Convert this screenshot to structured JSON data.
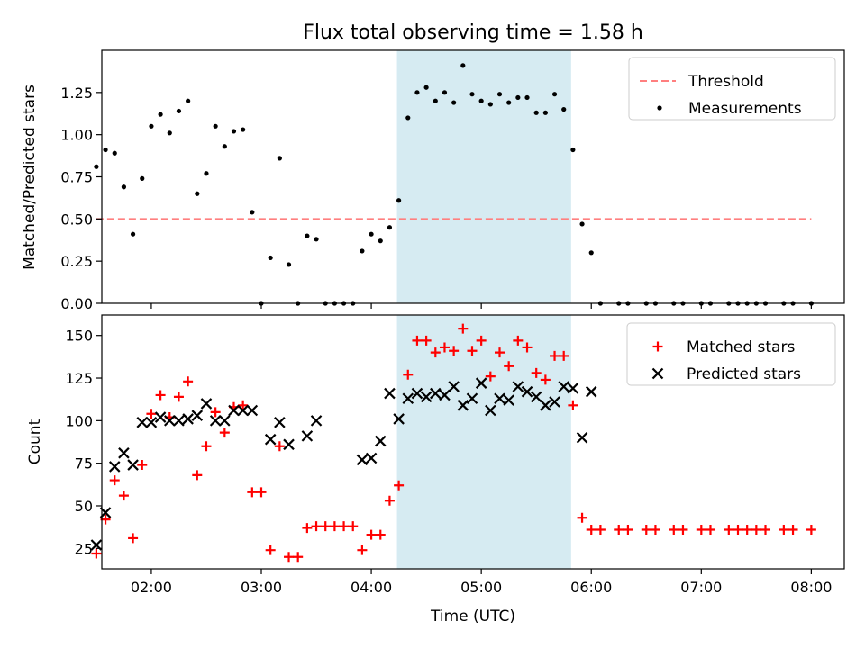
{
  "title": "Flux total observing time = 1.58 h",
  "chart_data": [
    {
      "type": "scatter",
      "title": "Flux total observing time = 1.58 h",
      "xlabel": "",
      "ylabel": "Matched/Predicted stars",
      "xlim": [
        "01:33",
        "08:18"
      ],
      "ylim": [
        0,
        1.5
      ],
      "yticks": [
        "0.00",
        "0.25",
        "0.50",
        "0.75",
        "1.00",
        "1.25"
      ],
      "legend": {
        "placement": "top-right",
        "entries": [
          "Threshold",
          "Measurements"
        ]
      },
      "shaded_interval": {
        "start": "04:14",
        "end": "05:49",
        "color": "#add8e6"
      },
      "threshold": {
        "name": "Threshold",
        "value": 0.5,
        "x_start": "01:30",
        "x_end": "08:00",
        "color": "#ff7f7f",
        "style": "dashed"
      },
      "series": [
        {
          "name": "Measurements",
          "color": "#000000",
          "marker": "dot",
          "points": [
            [
              "01:30",
              0.81
            ],
            [
              "01:35",
              0.91
            ],
            [
              "01:40",
              0.89
            ],
            [
              "01:45",
              0.69
            ],
            [
              "01:50",
              0.41
            ],
            [
              "01:55",
              0.74
            ],
            [
              "02:00",
              1.05
            ],
            [
              "02:05",
              1.12
            ],
            [
              "02:10",
              1.01
            ],
            [
              "02:15",
              1.14
            ],
            [
              "02:20",
              1.2
            ],
            [
              "02:25",
              0.65
            ],
            [
              "02:30",
              0.77
            ],
            [
              "02:35",
              1.05
            ],
            [
              "02:40",
              0.93
            ],
            [
              "02:45",
              1.02
            ],
            [
              "02:50",
              1.03
            ],
            [
              "02:55",
              0.54
            ],
            [
              "03:00",
              0.0
            ],
            [
              "03:05",
              0.27
            ],
            [
              "03:10",
              0.86
            ],
            [
              "03:15",
              0.23
            ],
            [
              "03:20",
              0.0
            ],
            [
              "03:25",
              0.4
            ],
            [
              "03:30",
              0.38
            ],
            [
              "03:35",
              0.0
            ],
            [
              "03:40",
              0.0
            ],
            [
              "03:45",
              0.0
            ],
            [
              "03:50",
              0.0
            ],
            [
              "03:55",
              0.31
            ],
            [
              "04:00",
              0.41
            ],
            [
              "04:05",
              0.37
            ],
            [
              "04:10",
              0.45
            ],
            [
              "04:15",
              0.61
            ],
            [
              "04:20",
              1.1
            ],
            [
              "04:25",
              1.25
            ],
            [
              "04:30",
              1.28
            ],
            [
              "04:35",
              1.2
            ],
            [
              "04:40",
              1.25
            ],
            [
              "04:45",
              1.19
            ],
            [
              "04:50",
              1.41
            ],
            [
              "04:55",
              1.24
            ],
            [
              "05:00",
              1.2
            ],
            [
              "05:05",
              1.18
            ],
            [
              "05:10",
              1.24
            ],
            [
              "05:15",
              1.19
            ],
            [
              "05:20",
              1.22
            ],
            [
              "05:25",
              1.22
            ],
            [
              "05:30",
              1.13
            ],
            [
              "05:35",
              1.13
            ],
            [
              "05:40",
              1.24
            ],
            [
              "05:45",
              1.15
            ],
            [
              "05:50",
              0.91
            ],
            [
              "05:55",
              0.47
            ],
            [
              "06:00",
              0.3
            ],
            [
              "06:05",
              0.0
            ],
            [
              "06:15",
              0.0
            ],
            [
              "06:20",
              0.0
            ],
            [
              "06:30",
              0.0
            ],
            [
              "06:35",
              0.0
            ],
            [
              "06:45",
              0.0
            ],
            [
              "06:50",
              0.0
            ],
            [
              "07:00",
              0.0
            ],
            [
              "07:05",
              0.0
            ],
            [
              "07:15",
              0.0
            ],
            [
              "07:20",
              0.0
            ],
            [
              "07:25",
              0.0
            ],
            [
              "07:30",
              0.0
            ],
            [
              "07:35",
              0.0
            ],
            [
              "07:45",
              0.0
            ],
            [
              "07:50",
              0.0
            ],
            [
              "08:00",
              0.0
            ]
          ]
        }
      ]
    },
    {
      "type": "scatter",
      "title": "",
      "xlabel": "Time (UTC)",
      "ylabel": "Count",
      "xlim": [
        "01:33",
        "08:18"
      ],
      "ylim": [
        13,
        162
      ],
      "xticks": [
        "02:00",
        "03:00",
        "04:00",
        "05:00",
        "06:00",
        "07:00",
        "08:00"
      ],
      "yticks": [
        "25",
        "50",
        "75",
        "100",
        "125",
        "150"
      ],
      "legend": {
        "placement": "top-right",
        "entries": [
          "Matched stars",
          "Predicted stars"
        ]
      },
      "shaded_interval": {
        "start": "04:14",
        "end": "05:49",
        "color": "#add8e6"
      },
      "series": [
        {
          "name": "Matched stars",
          "color": "#ff0000",
          "marker": "plus",
          "points": [
            [
              "01:30",
              22
            ],
            [
              "01:35",
              42
            ],
            [
              "01:40",
              65
            ],
            [
              "01:45",
              56
            ],
            [
              "01:50",
              31
            ],
            [
              "01:55",
              74
            ],
            [
              "02:00",
              104
            ],
            [
              "02:05",
              115
            ],
            [
              "02:10",
              102
            ],
            [
              "02:15",
              114
            ],
            [
              "02:20",
              123
            ],
            [
              "02:25",
              68
            ],
            [
              "02:30",
              85
            ],
            [
              "02:35",
              105
            ],
            [
              "02:40",
              93
            ],
            [
              "02:45",
              108
            ],
            [
              "02:50",
              109
            ],
            [
              "02:55",
              58
            ],
            [
              "03:00",
              58
            ],
            [
              "03:05",
              24
            ],
            [
              "03:10",
              85
            ],
            [
              "03:15",
              20
            ],
            [
              "03:20",
              20
            ],
            [
              "03:25",
              37
            ],
            [
              "03:30",
              38
            ],
            [
              "03:35",
              38
            ],
            [
              "03:40",
              38
            ],
            [
              "03:45",
              38
            ],
            [
              "03:50",
              38
            ],
            [
              "03:55",
              24
            ],
            [
              "04:00",
              33
            ],
            [
              "04:05",
              33
            ],
            [
              "04:10",
              53
            ],
            [
              "04:15",
              62
            ],
            [
              "04:20",
              127
            ],
            [
              "04:25",
              147
            ],
            [
              "04:30",
              147
            ],
            [
              "04:35",
              140
            ],
            [
              "04:40",
              143
            ],
            [
              "04:45",
              141
            ],
            [
              "04:50",
              154
            ],
            [
              "04:55",
              141
            ],
            [
              "05:00",
              147
            ],
            [
              "05:05",
              126
            ],
            [
              "05:10",
              140
            ],
            [
              "05:15",
              132
            ],
            [
              "05:20",
              147
            ],
            [
              "05:25",
              143
            ],
            [
              "05:30",
              128
            ],
            [
              "05:35",
              124
            ],
            [
              "05:40",
              138
            ],
            [
              "05:45",
              138
            ],
            [
              "05:50",
              109
            ],
            [
              "05:55",
              43
            ],
            [
              "06:00",
              36
            ],
            [
              "06:05",
              36
            ],
            [
              "06:15",
              36
            ],
            [
              "06:20",
              36
            ],
            [
              "06:30",
              36
            ],
            [
              "06:35",
              36
            ],
            [
              "06:45",
              36
            ],
            [
              "06:50",
              36
            ],
            [
              "07:00",
              36
            ],
            [
              "07:05",
              36
            ],
            [
              "07:15",
              36
            ],
            [
              "07:20",
              36
            ],
            [
              "07:25",
              36
            ],
            [
              "07:30",
              36
            ],
            [
              "07:35",
              36
            ],
            [
              "07:45",
              36
            ],
            [
              "07:50",
              36
            ],
            [
              "08:00",
              36
            ]
          ]
        },
        {
          "name": "Predicted stars",
          "color": "#000000",
          "marker": "cross",
          "points": [
            [
              "01:30",
              27
            ],
            [
              "01:35",
              46
            ],
            [
              "01:40",
              73
            ],
            [
              "01:45",
              81
            ],
            [
              "01:50",
              74
            ],
            [
              "01:55",
              99
            ],
            [
              "02:00",
              99
            ],
            [
              "02:05",
              102
            ],
            [
              "02:10",
              100
            ],
            [
              "02:15",
              100
            ],
            [
              "02:20",
              101
            ],
            [
              "02:25",
              103
            ],
            [
              "02:30",
              110
            ],
            [
              "02:35",
              100
            ],
            [
              "02:40",
              100
            ],
            [
              "02:45",
              106
            ],
            [
              "02:50",
              106
            ],
            [
              "02:55",
              106
            ],
            [
              "03:05",
              89
            ],
            [
              "03:10",
              99
            ],
            [
              "03:15",
              86
            ],
            [
              "03:25",
              91
            ],
            [
              "03:30",
              100
            ],
            [
              "03:55",
              77
            ],
            [
              "04:00",
              78
            ],
            [
              "04:05",
              88
            ],
            [
              "04:10",
              116
            ],
            [
              "04:15",
              101
            ],
            [
              "04:20",
              113
            ],
            [
              "04:25",
              116
            ],
            [
              "04:30",
              114
            ],
            [
              "04:35",
              116
            ],
            [
              "04:40",
              115
            ],
            [
              "04:45",
              120
            ],
            [
              "04:50",
              109
            ],
            [
              "04:55",
              113
            ],
            [
              "05:00",
              122
            ],
            [
              "05:05",
              106
            ],
            [
              "05:10",
              113
            ],
            [
              "05:15",
              112
            ],
            [
              "05:20",
              120
            ],
            [
              "05:25",
              117
            ],
            [
              "05:30",
              114
            ],
            [
              "05:35",
              109
            ],
            [
              "05:40",
              111
            ],
            [
              "05:45",
              120
            ],
            [
              "05:50",
              119
            ],
            [
              "05:55",
              90
            ],
            [
              "06:00",
              117
            ]
          ]
        }
      ]
    }
  ]
}
